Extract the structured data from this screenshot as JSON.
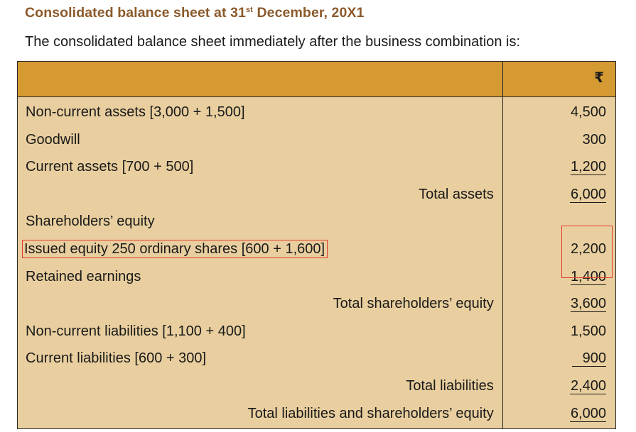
{
  "heading": {
    "prefix": "Consolidated balance sheet at 31",
    "superscript": "st",
    "suffix": " December, 20X1"
  },
  "intro": "The consolidated balance sheet immediately after the business combination is:",
  "table": {
    "currency": "₹",
    "rows": [
      {
        "label": "Non-current assets [3,000 + 1,500]",
        "amount": "4,500"
      },
      {
        "label": "Goodwill",
        "amount": "300"
      },
      {
        "label": "Current assets [700 + 500]",
        "amount": "1,200"
      },
      {
        "label": "Total assets",
        "amount": "6,000"
      },
      {
        "label": "Shareholders’ equity",
        "amount": ""
      },
      {
        "label": "Issued equity 250 ordinary shares [600 + 1,600]",
        "amount": "2,200"
      },
      {
        "label": "Retained earnings",
        "amount": "1,400"
      },
      {
        "label": "Total shareholders’ equity",
        "amount": "3,600"
      },
      {
        "label": "Non-current liabilities [1,100 + 400]",
        "amount": "1,500"
      },
      {
        "label": "Current liabilities [600 + 300]",
        "amount": "900"
      },
      {
        "label": "Total liabilities",
        "amount": "2,400"
      },
      {
        "label": "Total liabilities and shareholders’ equity",
        "amount": "6,000"
      }
    ]
  },
  "colors": {
    "heading": "#8b5a2b",
    "header_row": "#d69a33",
    "body_bg": "#e9cf9f",
    "highlight": "#e23a2a"
  }
}
